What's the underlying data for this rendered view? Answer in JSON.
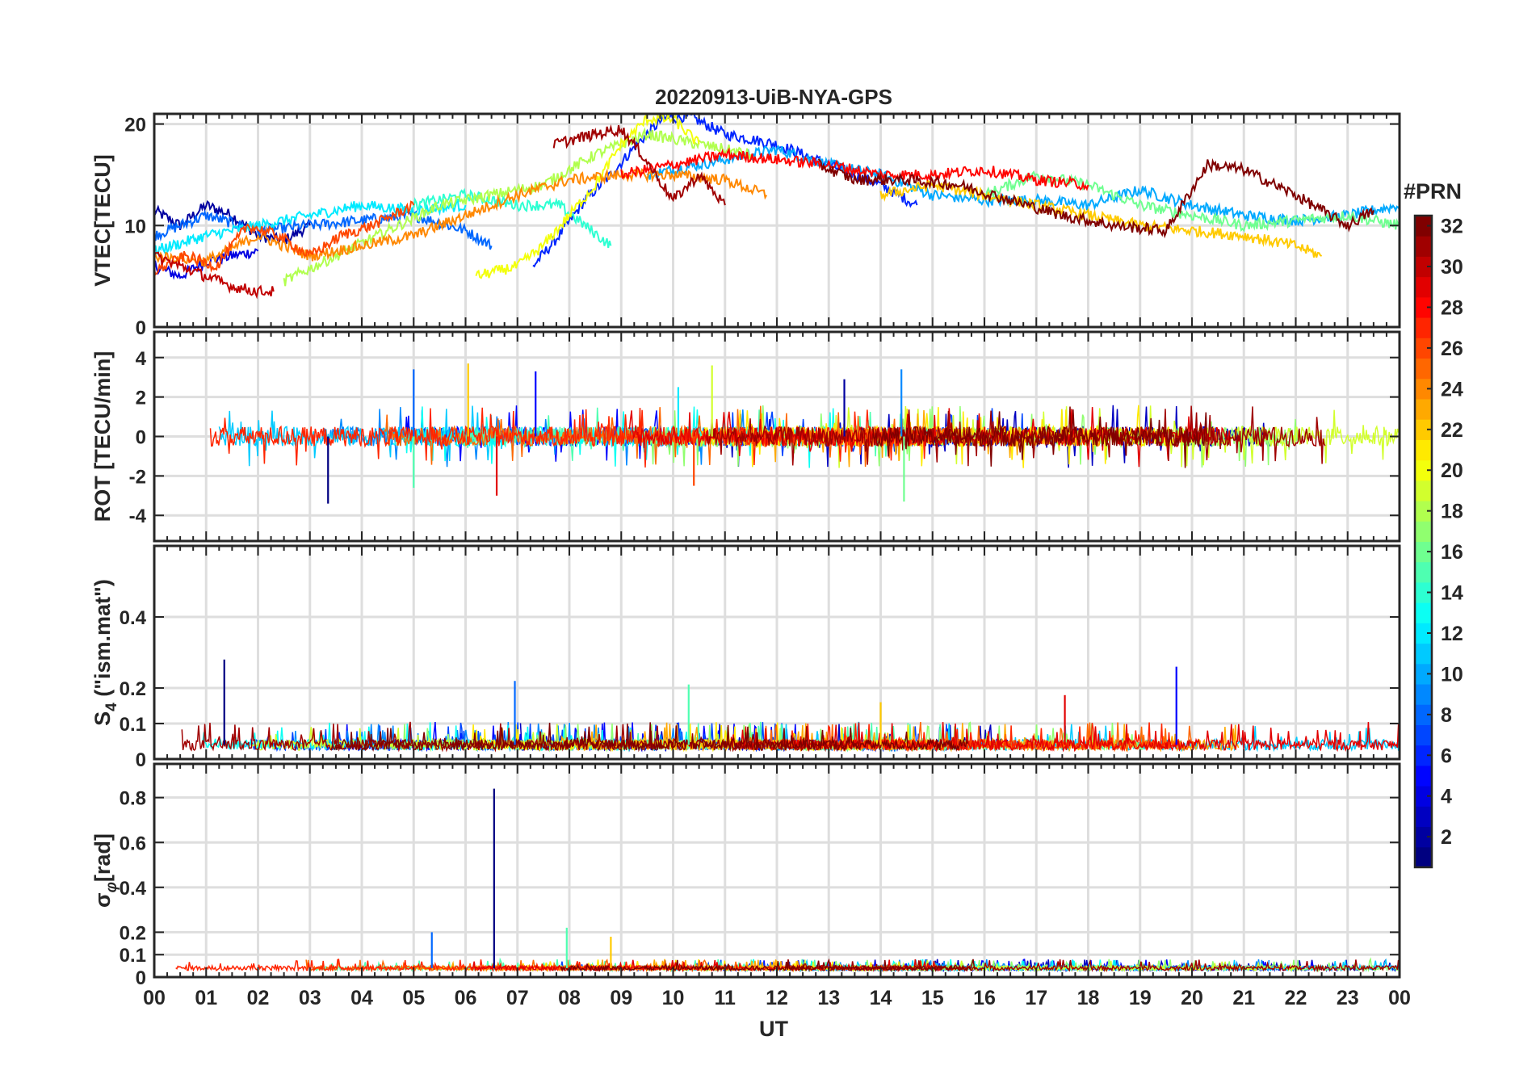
{
  "figure": {
    "title": "20220913-UiB-NYA-GPS",
    "xlabel": "UT",
    "x_tick_labels": [
      "00",
      "01",
      "02",
      "03",
      "04",
      "05",
      "06",
      "07",
      "08",
      "09",
      "10",
      "11",
      "12",
      "13",
      "14",
      "15",
      "16",
      "17",
      "18",
      "19",
      "20",
      "21",
      "22",
      "23",
      "00"
    ]
  },
  "colorbar": {
    "title": "#PRN",
    "colormap": "jet",
    "range": [
      1,
      32
    ],
    "tick_labels": [
      "2",
      "4",
      "6",
      "8",
      "10",
      "12",
      "14",
      "16",
      "18",
      "20",
      "22",
      "24",
      "26",
      "28",
      "30",
      "32"
    ]
  },
  "chart_data": [
    {
      "type": "line",
      "panel": "vtec",
      "ylabel": "VTEC[TECU]",
      "ylim": [
        0,
        21
      ],
      "yticks": [
        0,
        10,
        20
      ],
      "xlim": [
        0,
        24
      ],
      "grid": true,
      "series": [
        {
          "prn": 2,
          "points": [
            [
              0,
              11.5
            ],
            [
              0.5,
              10
            ],
            [
              1,
              12
            ],
            [
              1.5,
              11
            ],
            [
              2,
              9
            ],
            [
              2.5,
              8.5
            ],
            [
              3,
              10
            ]
          ]
        },
        {
          "prn": 4,
          "points": [
            [
              0,
              6
            ],
            [
              0.5,
              5
            ],
            [
              1,
              6.5
            ],
            [
              1.5,
              7
            ],
            [
              2,
              7.5
            ]
          ]
        },
        {
          "prn": 6,
          "points": [
            [
              7.3,
              6
            ],
            [
              7.8,
              9
            ],
            [
              8.3,
              12.5
            ],
            [
              8.8,
              15
            ],
            [
              9.3,
              18
            ],
            [
              9.8,
              20.5
            ],
            [
              10.3,
              20.8
            ],
            [
              11,
              19
            ],
            [
              12,
              18
            ],
            [
              13,
              16
            ],
            [
              14,
              14
            ],
            [
              14.7,
              12
            ]
          ]
        },
        {
          "prn": 8,
          "points": [
            [
              0,
              9
            ],
            [
              1,
              11
            ],
            [
              2,
              9.5
            ],
            [
              3,
              10
            ],
            [
              4,
              10.5
            ],
            [
              5,
              11
            ],
            [
              6,
              9.5
            ],
            [
              6.5,
              8
            ]
          ]
        },
        {
          "prn": 10,
          "points": [
            [
              9.5,
              15
            ],
            [
              11,
              16.5
            ],
            [
              12,
              17.5
            ],
            [
              13,
              16
            ],
            [
              14,
              15
            ],
            [
              15,
              13
            ],
            [
              16,
              12.5
            ],
            [
              17,
              12.5
            ],
            [
              18,
              12
            ],
            [
              19,
              13.5
            ],
            [
              20,
              12
            ],
            [
              21,
              11
            ],
            [
              22,
              10.5
            ],
            [
              23,
              11
            ],
            [
              24,
              12
            ]
          ]
        },
        {
          "prn": 12,
          "points": [
            [
              0,
              7.5
            ],
            [
              1,
              9
            ],
            [
              2,
              10
            ],
            [
              3,
              11
            ],
            [
              4,
              12
            ],
            [
              5,
              11.5
            ],
            [
              6,
              12
            ]
          ]
        },
        {
          "prn": 14,
          "points": [
            [
              5,
              12
            ],
            [
              6,
              13
            ],
            [
              7,
              12
            ],
            [
              7.8,
              12
            ],
            [
              8.3,
              10
            ],
            [
              8.8,
              8
            ]
          ]
        },
        {
          "prn": 16,
          "points": [
            [
              16,
              13
            ],
            [
              17,
              15
            ],
            [
              18,
              14
            ],
            [
              19,
              12
            ],
            [
              20,
              11
            ],
            [
              21,
              10
            ],
            [
              22,
              10.5
            ],
            [
              23,
              11
            ],
            [
              24,
              10
            ]
          ]
        },
        {
          "prn": 18,
          "points": [
            [
              2.5,
              4.5
            ],
            [
              3.5,
              7
            ],
            [
              4.5,
              9.5
            ],
            [
              5.5,
              12
            ],
            [
              6.5,
              13
            ],
            [
              7.5,
              14
            ],
            [
              8.5,
              17
            ],
            [
              9.5,
              19
            ],
            [
              10.5,
              18
            ],
            [
              11.5,
              17
            ]
          ]
        },
        {
          "prn": 20,
          "points": [
            [
              6.2,
              5
            ],
            [
              7,
              6
            ],
            [
              7.5,
              8
            ],
            [
              8,
              11
            ],
            [
              8.5,
              14
            ],
            [
              9,
              18
            ],
            [
              9.5,
              20.5
            ],
            [
              10,
              20.5
            ],
            [
              10.5,
              18
            ]
          ]
        },
        {
          "prn": 22,
          "points": [
            [
              14,
              13
            ],
            [
              15,
              14
            ],
            [
              16,
              13
            ],
            [
              17,
              12
            ],
            [
              18,
              11
            ],
            [
              19,
              10
            ],
            [
              20,
              9.5
            ],
            [
              21,
              9
            ],
            [
              22,
              8
            ],
            [
              22.5,
              7
            ]
          ]
        },
        {
          "prn": 24,
          "points": [
            [
              0,
              7
            ],
            [
              1,
              6.5
            ],
            [
              2,
              9
            ],
            [
              3,
              7
            ],
            [
              4,
              8
            ],
            [
              5,
              9
            ],
            [
              6,
              11
            ],
            [
              7,
              13
            ],
            [
              8,
              14.5
            ],
            [
              9,
              15
            ],
            [
              10,
              15
            ],
            [
              11,
              14.5
            ],
            [
              11.8,
              13
            ]
          ]
        },
        {
          "prn": 26,
          "points": [
            [
              0,
              5.5
            ],
            [
              0.6,
              7
            ],
            [
              1.2,
              6
            ],
            [
              1.8,
              10
            ],
            [
              2.4,
              9
            ],
            [
              3,
              7
            ],
            [
              3.6,
              9
            ],
            [
              4.2,
              10
            ],
            [
              5,
              12
            ]
          ]
        },
        {
          "prn": 28,
          "points": [
            [
              9,
              15
            ],
            [
              10,
              16
            ],
            [
              11,
              17
            ],
            [
              12,
              16.5
            ],
            [
              13,
              16
            ],
            [
              14,
              15
            ],
            [
              15,
              15
            ],
            [
              16,
              15.5
            ],
            [
              17,
              14.5
            ],
            [
              18,
              14
            ]
          ]
        },
        {
          "prn": 30,
          "points": [
            [
              0,
              7
            ],
            [
              0.5,
              6
            ],
            [
              1,
              5
            ],
            [
              1.5,
              4
            ],
            [
              2,
              3.5
            ],
            [
              2.3,
              3.5
            ]
          ]
        },
        {
          "prn": 31,
          "points": [
            [
              7.7,
              18
            ],
            [
              8.5,
              19
            ],
            [
              9,
              19.5
            ],
            [
              9.4,
              17
            ],
            [
              10,
              12.5
            ],
            [
              10.5,
              15
            ],
            [
              11,
              12
            ]
          ]
        },
        {
          "prn": 32,
          "points": [
            [
              12.8,
              16
            ],
            [
              13.5,
              14.5
            ],
            [
              14.5,
              14.5
            ],
            [
              15.5,
              14
            ],
            [
              16.5,
              12.5
            ],
            [
              17.5,
              11
            ],
            [
              18.5,
              10
            ],
            [
              19.5,
              9.5
            ],
            [
              20.3,
              16
            ],
            [
              21,
              15.5
            ],
            [
              22,
              13
            ],
            [
              23,
              10
            ],
            [
              23.5,
              11.5
            ]
          ]
        }
      ]
    },
    {
      "type": "line",
      "panel": "rot",
      "ylabel": "ROT [TECU/min]",
      "ylim": [
        -5.3,
        5.3
      ],
      "yticks": [
        -4,
        -2,
        0,
        2,
        4
      ],
      "xlim": [
        0,
        24
      ],
      "grid": true,
      "notable_spikes": [
        {
          "x": 3.35,
          "y": -3.4
        },
        {
          "x": 5.0,
          "y": 3.4
        },
        {
          "x": 5.0,
          "y": -2.6
        },
        {
          "x": 6.05,
          "y": 3.7
        },
        {
          "x": 6.6,
          "y": -3.0
        },
        {
          "x": 7.35,
          "y": 3.3
        },
        {
          "x": 10.1,
          "y": 2.5
        },
        {
          "x": 10.75,
          "y": 3.6
        },
        {
          "x": 10.4,
          "y": -2.5
        },
        {
          "x": 13.3,
          "y": 2.9
        },
        {
          "x": 14.4,
          "y": 3.4
        },
        {
          "x": 14.45,
          "y": -3.3
        }
      ]
    },
    {
      "type": "line",
      "panel": "s4",
      "ylabel": "S4 (\"ism.mat\")",
      "ylim": [
        0,
        0.6
      ],
      "yticks": [
        0,
        0.1,
        0.2,
        0.4
      ],
      "xlim": [
        0,
        24
      ],
      "grid": true,
      "notable_peaks": [
        {
          "x": 1.35,
          "y": 0.28
        },
        {
          "x": 6.95,
          "y": 0.22
        },
        {
          "x": 10.3,
          "y": 0.21
        },
        {
          "x": 14.0,
          "y": 0.16
        },
        {
          "x": 17.55,
          "y": 0.18
        },
        {
          "x": 19.7,
          "y": 0.26
        }
      ]
    },
    {
      "type": "line",
      "panel": "sigma_phi",
      "ylabel": "σφ[rad]",
      "ylim": [
        0,
        0.95
      ],
      "yticks": [
        0,
        0.1,
        0.2,
        0.4,
        0.6,
        0.8
      ],
      "xlim": [
        0,
        24
      ],
      "grid": true,
      "notable_peaks": [
        {
          "x": 6.55,
          "y": 0.84
        },
        {
          "x": 5.35,
          "y": 0.2
        },
        {
          "x": 7.95,
          "y": 0.22
        },
        {
          "x": 8.8,
          "y": 0.18
        }
      ]
    }
  ]
}
